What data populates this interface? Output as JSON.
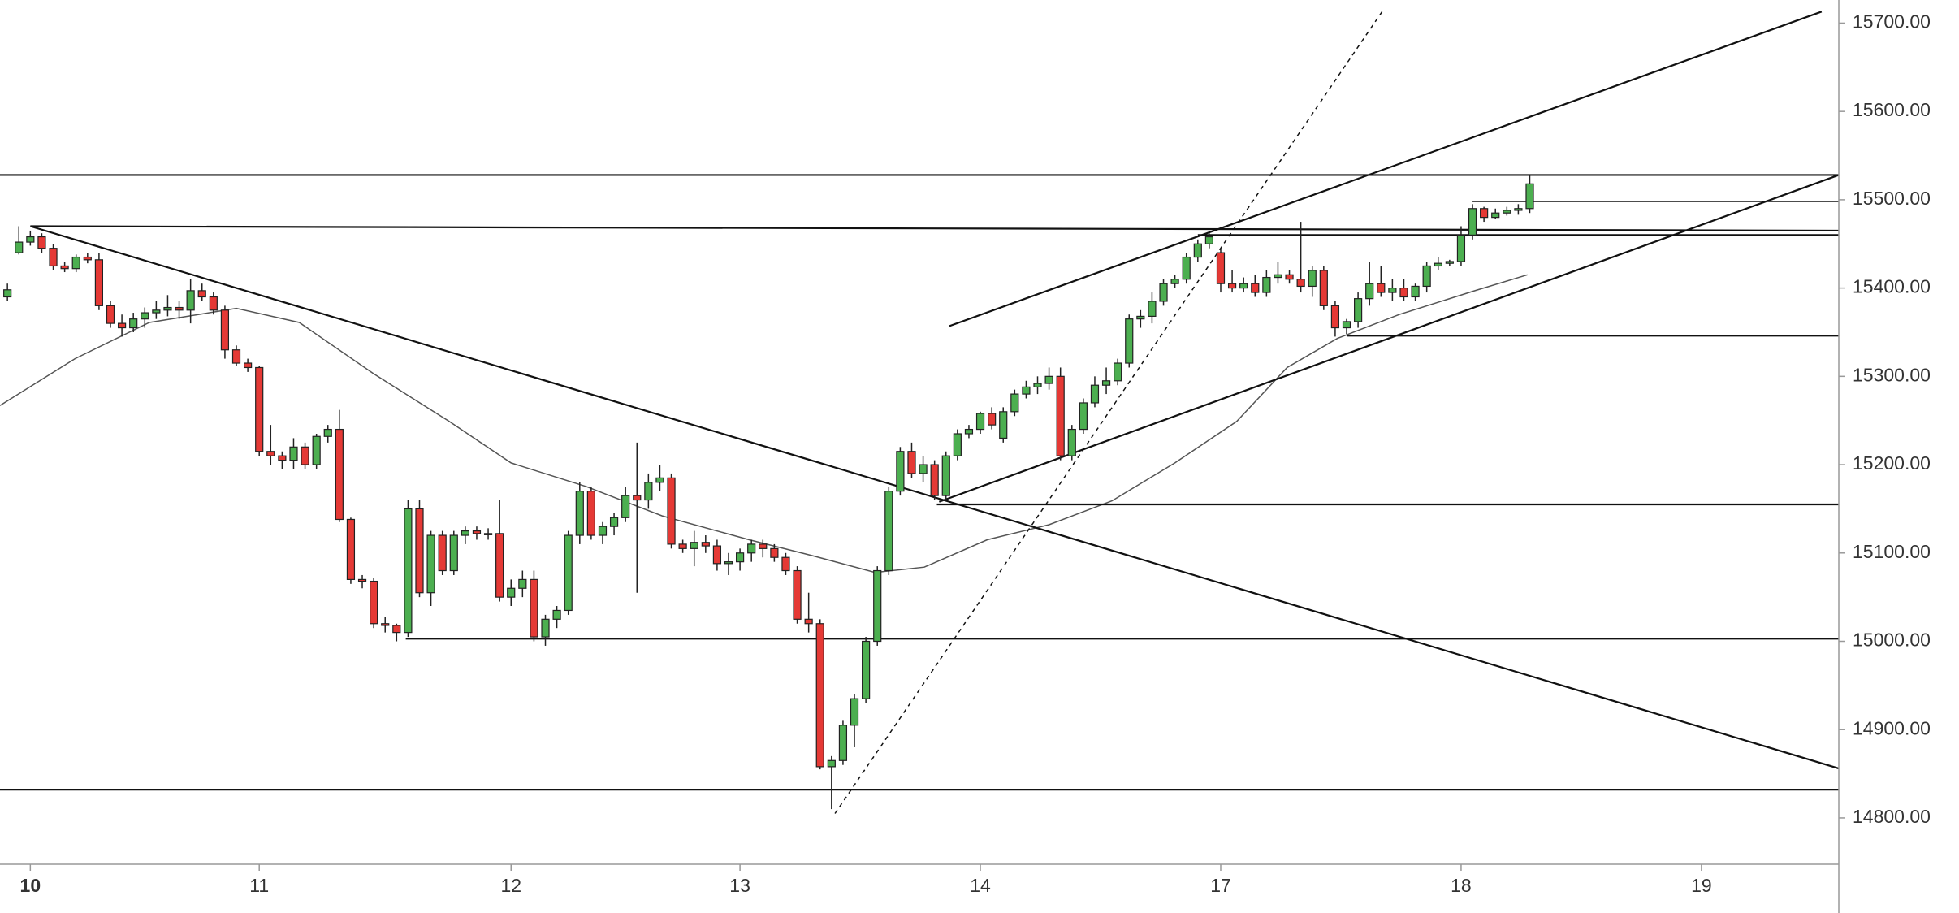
{
  "chart_data": {
    "type": "candlestick",
    "categories": [
      null,
      null,
      "10",
      null,
      null,
      null,
      null,
      null,
      null,
      null,
      null,
      null,
      null,
      null,
      null,
      null,
      null,
      null,
      null,
      null,
      null,
      null,
      "11",
      null,
      null,
      null,
      null,
      null,
      null,
      null,
      null,
      null,
      null,
      null,
      null,
      null,
      null,
      null,
      null,
      null,
      null,
      null,
      null,
      null,
      "12",
      null,
      null,
      null,
      null,
      null,
      null,
      null,
      null,
      null,
      null,
      null,
      null,
      null,
      null,
      null,
      null,
      null,
      null,
      null,
      "13",
      null,
      null,
      null,
      null,
      null,
      null,
      null,
      null,
      null,
      null,
      null,
      null,
      null,
      null,
      null,
      null,
      null,
      null,
      null,
      null,
      "14",
      null,
      null,
      null,
      null,
      null,
      null,
      null,
      null,
      null,
      null,
      null,
      null,
      null,
      null,
      null,
      null,
      null,
      null,
      null,
      null,
      "17",
      null,
      null,
      null,
      null,
      null,
      null,
      null,
      null,
      null,
      null,
      null,
      null,
      null,
      null,
      null,
      null,
      null,
      null,
      null,
      null,
      "18",
      null,
      null,
      null,
      null,
      null,
      null,
      null,
      null,
      null,
      null,
      null,
      null,
      null,
      null,
      null,
      null,
      null,
      null,
      null,
      null,
      "19"
    ],
    "ohlc": [
      [
        15390,
        15405,
        15385,
        15398
      ],
      [
        15440,
        15470,
        15438,
        15452
      ],
      [
        15452,
        15465,
        15448,
        15458
      ],
      [
        15458,
        15462,
        15440,
        15445
      ],
      [
        15445,
        15450,
        15420,
        15425
      ],
      [
        15425,
        15430,
        15418,
        15422
      ],
      [
        15422,
        15438,
        15418,
        15435
      ],
      [
        15435,
        15440,
        15428,
        15432
      ],
      [
        15432,
        15440,
        15375,
        15380
      ],
      [
        15380,
        15385,
        15355,
        15360
      ],
      [
        15360,
        15370,
        15345,
        15355
      ],
      [
        15355,
        15372,
        15350,
        15365
      ],
      [
        15365,
        15378,
        15355,
        15372
      ],
      [
        15372,
        15385,
        15365,
        15375
      ],
      [
        15375,
        15392,
        15368,
        15378
      ],
      [
        15378,
        15385,
        15365,
        15375
      ],
      [
        15375,
        15410,
        15360,
        15397
      ],
      [
        15397,
        15405,
        15385,
        15390
      ],
      [
        15390,
        15395,
        15370,
        15375
      ],
      [
        15375,
        15380,
        15320,
        15330
      ],
      [
        15330,
        15335,
        15312,
        15315
      ],
      [
        15315,
        15320,
        15305,
        15310
      ],
      [
        15310,
        15312,
        15210,
        15215
      ],
      [
        15215,
        15245,
        15200,
        15210
      ],
      [
        15210,
        15215,
        15195,
        15205
      ],
      [
        15205,
        15230,
        15195,
        15220
      ],
      [
        15220,
        15225,
        15195,
        15200
      ],
      [
        15200,
        15235,
        15195,
        15232
      ],
      [
        15232,
        15245,
        15225,
        15240
      ],
      [
        15240,
        15262,
        15135,
        15138
      ],
      [
        15138,
        15140,
        15065,
        15070
      ],
      [
        15070,
        15075,
        15060,
        15068
      ],
      [
        15068,
        15072,
        15015,
        15020
      ],
      [
        15020,
        15028,
        15010,
        15018
      ],
      [
        15018,
        15020,
        15000,
        15010
      ],
      [
        15010,
        15160,
        15005,
        15150
      ],
      [
        15150,
        15160,
        15050,
        15055
      ],
      [
        15055,
        15125,
        15040,
        15120
      ],
      [
        15120,
        15125,
        15075,
        15080
      ],
      [
        15080,
        15125,
        15075,
        15120
      ],
      [
        15120,
        15130,
        15110,
        15125
      ],
      [
        15125,
        15130,
        15115,
        15122
      ],
      [
        15122,
        15128,
        15115,
        15122
      ],
      [
        15122,
        15160,
        15045,
        15050
      ],
      [
        15050,
        15070,
        15040,
        15060
      ],
      [
        15060,
        15080,
        15050,
        15070
      ],
      [
        15070,
        15080,
        15000,
        15005
      ],
      [
        15005,
        15030,
        14995,
        15025
      ],
      [
        15025,
        15040,
        15015,
        15035
      ],
      [
        15035,
        15125,
        15030,
        15120
      ],
      [
        15120,
        15180,
        15110,
        15170
      ],
      [
        15170,
        15175,
        15115,
        15120
      ],
      [
        15120,
        15135,
        15110,
        15130
      ],
      [
        15130,
        15145,
        15120,
        15140
      ],
      [
        15140,
        15175,
        15135,
        15165
      ],
      [
        15165,
        15225,
        15055,
        15160
      ],
      [
        15160,
        15190,
        15150,
        15180
      ],
      [
        15180,
        15200,
        15170,
        15185
      ],
      [
        15185,
        15190,
        15105,
        15110
      ],
      [
        15110,
        15115,
        15100,
        15105
      ],
      [
        15105,
        15125,
        15085,
        15112
      ],
      [
        15112,
        15120,
        15100,
        15108
      ],
      [
        15108,
        15115,
        15080,
        15088
      ],
      [
        15088,
        15100,
        15075,
        15090
      ],
      [
        15090,
        15105,
        15080,
        15100
      ],
      [
        15100,
        15115,
        15090,
        15110
      ],
      [
        15110,
        15115,
        15095,
        15105
      ],
      [
        15105,
        15110,
        15090,
        15095
      ],
      [
        15095,
        15100,
        15075,
        15080
      ],
      [
        15080,
        15085,
        15020,
        15025
      ],
      [
        15025,
        15055,
        15010,
        15020
      ],
      [
        15020,
        15025,
        14855,
        14858
      ],
      [
        14858,
        14870,
        14810,
        14865
      ],
      [
        14865,
        14910,
        14860,
        14905
      ],
      [
        14905,
        14940,
        14880,
        14935
      ],
      [
        14935,
        15005,
        14930,
        15000
      ],
      [
        15000,
        15085,
        14995,
        15080
      ],
      [
        15080,
        15175,
        15075,
        15170
      ],
      [
        15170,
        15220,
        15165,
        15215
      ],
      [
        15215,
        15225,
        15185,
        15190
      ],
      [
        15190,
        15210,
        15180,
        15200
      ],
      [
        15200,
        15205,
        15160,
        15165
      ],
      [
        15165,
        15215,
        15160,
        15210
      ],
      [
        15210,
        15240,
        15205,
        15235
      ],
      [
        15235,
        15245,
        15230,
        15240
      ],
      [
        15240,
        15260,
        15235,
        15258
      ],
      [
        15258,
        15265,
        15240,
        15245
      ],
      [
        15230,
        15265,
        15225,
        15260
      ],
      [
        15260,
        15285,
        15255,
        15280
      ],
      [
        15280,
        15295,
        15275,
        15288
      ],
      [
        15288,
        15300,
        15280,
        15292
      ],
      [
        15292,
        15310,
        15285,
        15300
      ],
      [
        15300,
        15310,
        15205,
        15210
      ],
      [
        15210,
        15245,
        15205,
        15240
      ],
      [
        15240,
        15275,
        15235,
        15270
      ],
      [
        15270,
        15300,
        15265,
        15290
      ],
      [
        15290,
        15310,
        15280,
        15295
      ],
      [
        15295,
        15320,
        15290,
        15315
      ],
      [
        15315,
        15370,
        15310,
        15365
      ],
      [
        15365,
        15375,
        15355,
        15368
      ],
      [
        15368,
        15395,
        15360,
        15385
      ],
      [
        15385,
        15410,
        15380,
        15405
      ],
      [
        15405,
        15415,
        15400,
        15410
      ],
      [
        15410,
        15440,
        15405,
        15435
      ],
      [
        15435,
        15455,
        15430,
        15450
      ],
      [
        15450,
        15462,
        15445,
        15458
      ],
      [
        15440,
        15445,
        15395,
        15405
      ],
      [
        15405,
        15420,
        15395,
        15400
      ],
      [
        15400,
        15412,
        15395,
        15405
      ],
      [
        15405,
        15415,
        15390,
        15395
      ],
      [
        15395,
        15420,
        15390,
        15412
      ],
      [
        15412,
        15430,
        15405,
        15415
      ],
      [
        15415,
        15420,
        15405,
        15410
      ],
      [
        15410,
        15475,
        15395,
        15402
      ],
      [
        15402,
        15425,
        15390,
        15420
      ],
      [
        15420,
        15425,
        15375,
        15380
      ],
      [
        15380,
        15385,
        15345,
        15355
      ],
      [
        15355,
        15365,
        15348,
        15362
      ],
      [
        15362,
        15395,
        15355,
        15388
      ],
      [
        15388,
        15430,
        15380,
        15405
      ],
      [
        15405,
        15425,
        15390,
        15395
      ],
      [
        15395,
        15410,
        15385,
        15400
      ],
      [
        15400,
        15410,
        15385,
        15390
      ],
      [
        15390,
        15405,
        15385,
        15402
      ],
      [
        15402,
        15430,
        15395,
        15425
      ],
      [
        15425,
        15435,
        15420,
        15428
      ],
      [
        15428,
        15432,
        15425,
        15430
      ],
      [
        15430,
        15470,
        15425,
        15460
      ],
      [
        15460,
        15495,
        15455,
        15490
      ],
      [
        15490,
        15492,
        15475,
        15480
      ],
      [
        15480,
        15490,
        15478,
        15485
      ],
      [
        15485,
        15492,
        15482,
        15488
      ],
      [
        15488,
        15495,
        15483,
        15490
      ],
      [
        15490,
        15528,
        15485,
        15518
      ],
      null,
      null,
      null,
      null,
      null,
      null,
      null,
      null,
      null,
      null,
      null,
      null,
      null,
      null,
      null
    ],
    "up_color": "#4caf50",
    "down_color": "#e53935",
    "ylim": [
      14765,
      15712
    ],
    "xlim": [
      -0.65,
      160
    ],
    "yticks": [
      {
        "value": 15700,
        "label": "15700.00"
      },
      {
        "value": 15600,
        "label": "15600.00"
      },
      {
        "value": 15500,
        "label": "15500.00"
      },
      {
        "value": 15400,
        "label": "15400.00"
      },
      {
        "value": 15300,
        "label": "15300.00"
      },
      {
        "value": 15200,
        "label": "15200.00"
      },
      {
        "value": 15100,
        "label": "15100.00"
      },
      {
        "value": 15000,
        "label": "15000.00"
      },
      {
        "value": 14900,
        "label": "14900.00"
      },
      {
        "value": 14800,
        "label": "14800.00"
      }
    ],
    "moving_average": {
      "color": "#555555",
      "x": [
        -0.65,
        5.9,
        12.4,
        20,
        25.5,
        32,
        38.6,
        44,
        50.6,
        57.2,
        64.8,
        70.3,
        75.8,
        80.1,
        85.6,
        91,
        96.5,
        102,
        107.4,
        111.8,
        116.2,
        121.6,
        128.2,
        132.8
      ],
      "y": [
        15267,
        15320,
        15361,
        15377,
        15361,
        15303,
        15249,
        15202,
        15175,
        15142,
        15115,
        15097,
        15078,
        15084,
        15115,
        15132,
        15159,
        15202,
        15249,
        15310,
        15343,
        15370,
        15397,
        15415
      ]
    },
    "trendlines": [
      {
        "x": [
          2,
          160
        ],
        "y": [
          15470,
          14856
        ],
        "style": "solid"
      },
      {
        "x": [
          2,
          160
        ],
        "y": [
          15470,
          15465
        ],
        "style": "solid"
      },
      {
        "x": [
          -0.65,
          160
        ],
        "y": [
          15528,
          15528
        ],
        "style": "solid"
      },
      {
        "x": [
          -0.65,
          160
        ],
        "y": [
          14832,
          14832
        ],
        "style": "solid"
      },
      {
        "x": [
          34.8,
          160
        ],
        "y": [
          15003,
          15003
        ],
        "style": "solid"
      },
      {
        "x": [
          81.2,
          160
        ],
        "y": [
          15155,
          15155
        ],
        "style": "solid"
      },
      {
        "x": [
          117,
          160
        ],
        "y": [
          15346,
          15346
        ],
        "style": "solid"
      },
      {
        "x": [
          104,
          160
        ],
        "y": [
          15460,
          15460
        ],
        "style": "solid"
      },
      {
        "x": [
          128,
          160
        ],
        "y": [
          15498,
          15498
        ],
        "style": "thin"
      },
      {
        "x": [
          82.3,
          158.5
        ],
        "y": [
          15357,
          15713
        ],
        "style": "solid"
      },
      {
        "x": [
          81.4,
          160
        ],
        "y": [
          15158,
          15528
        ],
        "style": "solid"
      },
      {
        "x": [
          72.3,
          120.1
        ],
        "y": [
          14805,
          15713
        ],
        "style": "dotted"
      }
    ]
  }
}
